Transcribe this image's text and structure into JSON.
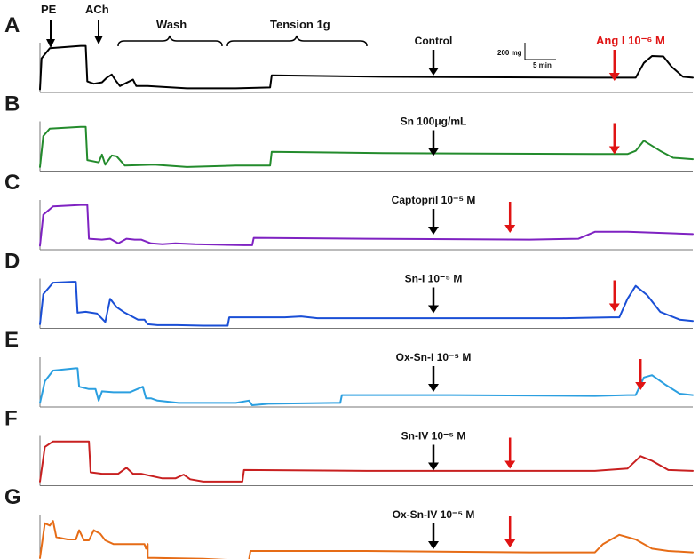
{
  "chart_data": {
    "type": "line",
    "title": "",
    "xlabel": "",
    "ylabel": "",
    "scale_bar": {
      "tension": "200 mg",
      "time": "5 min"
    },
    "protocol_labels": {
      "pe": "PE",
      "ach": "ACh",
      "wash": "Wash",
      "tension": "Tension 1g",
      "ang": "Ang I 10⁻⁶ M"
    },
    "panels": [
      {
        "letter": "A",
        "label": "Control",
        "color": "#000000",
        "ang_arrow": 0.88,
        "trace": [
          [
            0,
            3
          ],
          [
            1,
            70
          ],
          [
            6,
            92
          ],
          [
            25,
            97
          ],
          [
            28,
            97
          ],
          [
            29,
            20
          ],
          [
            33,
            15
          ],
          [
            38,
            18
          ],
          [
            41,
            28
          ],
          [
            44,
            35
          ],
          [
            46,
            24
          ],
          [
            49,
            10
          ],
          [
            57,
            24
          ],
          [
            59,
            10
          ],
          [
            66,
            10
          ],
          [
            75,
            8
          ],
          [
            90,
            5
          ],
          [
            120,
            5
          ],
          [
            141,
            7
          ],
          [
            142,
            33
          ],
          [
            210,
            30
          ],
          [
            340,
            28
          ],
          [
            365,
            28
          ],
          [
            370,
            60
          ],
          [
            375,
            75
          ],
          [
            382,
            74
          ],
          [
            387,
            52
          ],
          [
            394,
            30
          ],
          [
            400,
            28
          ]
        ]
      },
      {
        "letter": "B",
        "label": "Sn 100μg/mL",
        "color": "#238b2c",
        "ang_arrow": 0.88,
        "trace": [
          [
            0,
            5
          ],
          [
            2,
            72
          ],
          [
            6,
            88
          ],
          [
            25,
            92
          ],
          [
            28,
            92
          ],
          [
            29,
            20
          ],
          [
            36,
            15
          ],
          [
            38,
            32
          ],
          [
            40,
            10
          ],
          [
            44,
            30
          ],
          [
            47,
            28
          ],
          [
            52,
            8
          ],
          [
            70,
            10
          ],
          [
            90,
            5
          ],
          [
            120,
            8
          ],
          [
            141,
            8
          ],
          [
            142,
            38
          ],
          [
            210,
            35
          ],
          [
            340,
            33
          ],
          [
            360,
            33
          ],
          [
            365,
            40
          ],
          [
            370,
            62
          ],
          [
            380,
            40
          ],
          [
            388,
            25
          ],
          [
            400,
            22
          ]
        ]
      },
      {
        "letter": "C",
        "label": "Captopril 10⁻⁵ M",
        "color": "#7f22c2",
        "ang_arrow": 0.72,
        "trace": [
          [
            0,
            5
          ],
          [
            2,
            72
          ],
          [
            8,
            90
          ],
          [
            25,
            93
          ],
          [
            29,
            93
          ],
          [
            30,
            20
          ],
          [
            38,
            18
          ],
          [
            43,
            20
          ],
          [
            48,
            10
          ],
          [
            53,
            20
          ],
          [
            58,
            18
          ],
          [
            62,
            18
          ],
          [
            68,
            10
          ],
          [
            75,
            8
          ],
          [
            83,
            10
          ],
          [
            95,
            8
          ],
          [
            125,
            6
          ],
          [
            130,
            6
          ],
          [
            131,
            22
          ],
          [
            200,
            20
          ],
          [
            300,
            18
          ],
          [
            330,
            20
          ],
          [
            340,
            35
          ],
          [
            360,
            35
          ],
          [
            400,
            30
          ]
        ]
      },
      {
        "letter": "D",
        "label": "Sn-I 10⁻⁵ M",
        "color": "#1a4fd6",
        "ang_arrow": 0.88,
        "trace": [
          [
            0,
            5
          ],
          [
            2,
            70
          ],
          [
            8,
            95
          ],
          [
            20,
            97
          ],
          [
            22,
            97
          ],
          [
            23,
            30
          ],
          [
            28,
            32
          ],
          [
            35,
            28
          ],
          [
            40,
            10
          ],
          [
            43,
            60
          ],
          [
            47,
            42
          ],
          [
            52,
            30
          ],
          [
            60,
            15
          ],
          [
            64,
            15
          ],
          [
            66,
            5
          ],
          [
            72,
            3
          ],
          [
            84,
            3
          ],
          [
            100,
            2
          ],
          [
            115,
            2
          ],
          [
            116,
            20
          ],
          [
            150,
            20
          ],
          [
            160,
            22
          ],
          [
            170,
            18
          ],
          [
            200,
            18
          ],
          [
            320,
            18
          ],
          [
            350,
            20
          ],
          [
            355,
            20
          ],
          [
            360,
            60
          ],
          [
            365,
            88
          ],
          [
            372,
            68
          ],
          [
            380,
            32
          ],
          [
            392,
            15
          ],
          [
            400,
            12
          ]
        ]
      },
      {
        "letter": "E",
        "label": "Ox-Sn-I 10⁻⁵ M",
        "color": "#2b9fe0",
        "ang_arrow": 0.92,
        "trace": [
          [
            0,
            5
          ],
          [
            3,
            52
          ],
          [
            8,
            75
          ],
          [
            22,
            80
          ],
          [
            23,
            80
          ],
          [
            24,
            40
          ],
          [
            30,
            35
          ],
          [
            34,
            35
          ],
          [
            36,
            10
          ],
          [
            38,
            30
          ],
          [
            45,
            28
          ],
          [
            55,
            28
          ],
          [
            63,
            40
          ],
          [
            65,
            15
          ],
          [
            68,
            15
          ],
          [
            72,
            10
          ],
          [
            85,
            5
          ],
          [
            120,
            5
          ],
          [
            128,
            10
          ],
          [
            130,
            0
          ],
          [
            140,
            3
          ],
          [
            180,
            5
          ],
          [
            184,
            5
          ],
          [
            185,
            22
          ],
          [
            250,
            22
          ],
          [
            340,
            20
          ],
          [
            360,
            22
          ],
          [
            365,
            22
          ],
          [
            370,
            60
          ],
          [
            375,
            65
          ],
          [
            383,
            45
          ],
          [
            392,
            25
          ],
          [
            400,
            22
          ]
        ]
      },
      {
        "letter": "F",
        "label": "Sn-IV 10⁻⁵ M",
        "color": "#c82020",
        "ang_arrow": 0.72,
        "trace": [
          [
            0,
            5
          ],
          [
            3,
            80
          ],
          [
            8,
            92
          ],
          [
            25,
            92
          ],
          [
            30,
            92
          ],
          [
            31,
            25
          ],
          [
            38,
            22
          ],
          [
            48,
            22
          ],
          [
            53,
            35
          ],
          [
            57,
            22
          ],
          [
            62,
            22
          ],
          [
            75,
            12
          ],
          [
            83,
            12
          ],
          [
            88,
            20
          ],
          [
            92,
            10
          ],
          [
            100,
            5
          ],
          [
            120,
            5
          ],
          [
            124,
            5
          ],
          [
            125,
            30
          ],
          [
            200,
            28
          ],
          [
            300,
            28
          ],
          [
            340,
            28
          ],
          [
            360,
            33
          ],
          [
            368,
            60
          ],
          [
            375,
            50
          ],
          [
            385,
            30
          ],
          [
            400,
            28
          ]
        ]
      },
      {
        "letter": "G",
        "label": "Ox-Sn-IV 10⁻⁵ M",
        "color": "#e66c16",
        "ang_arrow": 0.72,
        "trace": [
          [
            0,
            10
          ],
          [
            3,
            85
          ],
          [
            6,
            80
          ],
          [
            8,
            90
          ],
          [
            10,
            55
          ],
          [
            17,
            50
          ],
          [
            22,
            50
          ],
          [
            24,
            70
          ],
          [
            27,
            48
          ],
          [
            30,
            48
          ],
          [
            33,
            70
          ],
          [
            37,
            62
          ],
          [
            40,
            48
          ],
          [
            45,
            40
          ],
          [
            62,
            40
          ],
          [
            64,
            40
          ],
          [
            65,
            30
          ],
          [
            66,
            40
          ],
          [
            66,
            10
          ],
          [
            70,
            10
          ],
          [
            100,
            8
          ],
          [
            120,
            5
          ],
          [
            128,
            5
          ],
          [
            129,
            25
          ],
          [
            200,
            25
          ],
          [
            300,
            22
          ],
          [
            330,
            22
          ],
          [
            340,
            22
          ],
          [
            345,
            40
          ],
          [
            355,
            60
          ],
          [
            365,
            50
          ],
          [
            375,
            30
          ],
          [
            385,
            25
          ],
          [
            400,
            22
          ]
        ]
      }
    ]
  }
}
